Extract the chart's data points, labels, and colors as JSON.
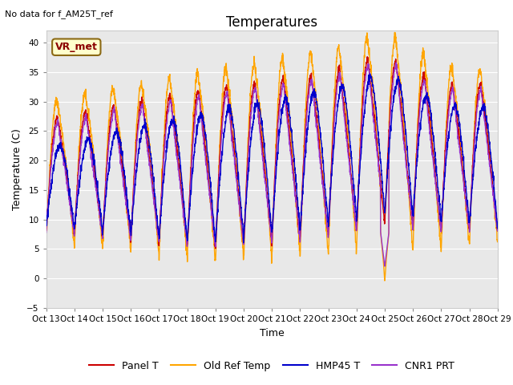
{
  "title": "Temperatures",
  "xlabel": "Time",
  "ylabel": "Temperature (C)",
  "top_left_text": "No data for f_AM25T_ref",
  "legend_text": "VR_met",
  "ylim": [
    -5,
    42
  ],
  "yticks": [
    -5,
    0,
    5,
    10,
    15,
    20,
    25,
    30,
    35,
    40
  ],
  "xlim": [
    0,
    16
  ],
  "xtick_labels": [
    "Oct 13",
    "Oct 14",
    "Oct 15",
    "Oct 16",
    "Oct 17",
    "Oct 18",
    "Oct 19",
    "Oct 20",
    "Oct 21",
    "Oct 22",
    "Oct 23",
    "Oct 24",
    "Oct 25",
    "Oct 26",
    "Oct 27",
    "Oct 28",
    "Oct 29"
  ],
  "bg_color": "#e8e8e8",
  "panel_color": "#cc0000",
  "oldref_color": "#ffa500",
  "hmp45_color": "#0000cc",
  "cnr1_color": "#9933cc",
  "line_width": 1.0
}
